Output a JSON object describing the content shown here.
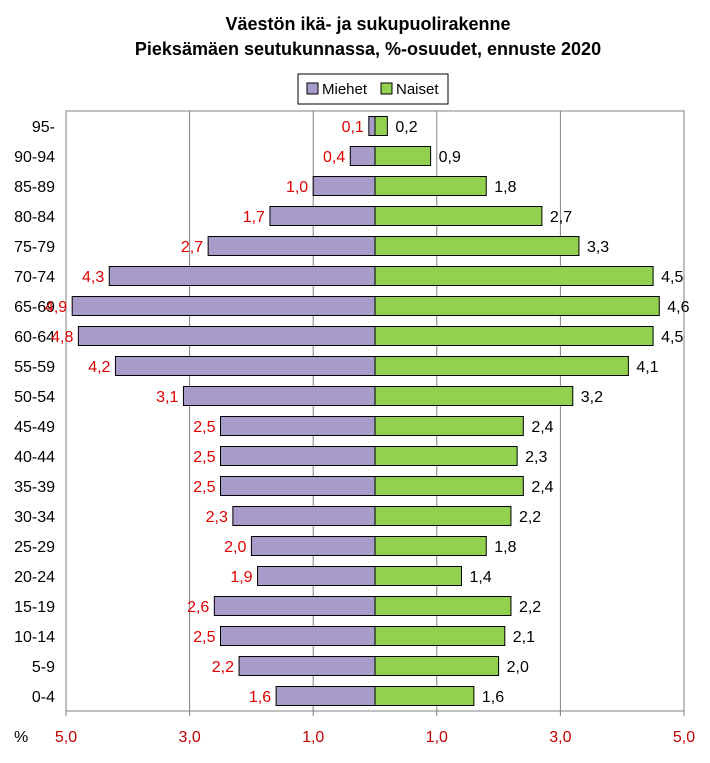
{
  "chart_data": {
    "type": "bar",
    "orientation": "horizontal-population-pyramid",
    "title_line1": "Väestön ikä- ja sukupuolirakenne",
    "title_line2": "Pieksämäen seutukunnassa, %-osuudet,  ennuste 2020",
    "xlabel": "%",
    "categories": [
      "95-",
      "90-94",
      "85-89",
      "80-84",
      "75-79",
      "70-74",
      "65-69",
      "60-64",
      "55-59",
      "50-54",
      "45-49",
      "40-44",
      "35-39",
      "30-34",
      "25-29",
      "20-24",
      "15-19",
      "10-14",
      "5-9",
      "0-4"
    ],
    "series": [
      {
        "name": "Miehet",
        "color": "#a99bc9",
        "label_color": "#e00000",
        "values": [
          0.1,
          0.4,
          1.0,
          1.7,
          2.7,
          4.3,
          4.9,
          4.8,
          4.2,
          3.1,
          2.5,
          2.5,
          2.5,
          2.3,
          2.0,
          1.9,
          2.6,
          2.5,
          2.2,
          1.6
        ],
        "labels": [
          "0,1",
          "0,4",
          "1,0",
          "1,7",
          "2,7",
          "4,3",
          "4,9",
          "4,8",
          "4,2",
          "3,1",
          "2,5",
          "2,5",
          "2,5",
          "2,3",
          "2,0",
          "1,9",
          "2,6",
          "2,5",
          "2,2",
          "1,6"
        ]
      },
      {
        "name": "Naiset",
        "color": "#92d050",
        "label_color": "#000000",
        "values": [
          0.2,
          0.9,
          1.8,
          2.7,
          3.3,
          4.5,
          4.6,
          4.5,
          4.1,
          3.2,
          2.4,
          2.3,
          2.4,
          2.2,
          1.8,
          1.4,
          2.2,
          2.1,
          2.0,
          1.6
        ],
        "labels": [
          "0,2",
          "0,9",
          "1,8",
          "2,7",
          "3,3",
          "4,5",
          "4,6",
          "4,5",
          "4,1",
          "3,2",
          "2,4",
          "2,3",
          "2,4",
          "2,2",
          "1,8",
          "1,4",
          "2,2",
          "2,1",
          "2,0",
          "1,6"
        ]
      }
    ],
    "xlim": [
      -5,
      5
    ],
    "x_ticks": [
      -5,
      -3,
      -1,
      1,
      3,
      5
    ],
    "x_tick_labels": [
      "5,0",
      "3,0",
      "1,0",
      "1,0",
      "3,0",
      "5,0"
    ],
    "legend_position": "top-center",
    "grid": true
  }
}
